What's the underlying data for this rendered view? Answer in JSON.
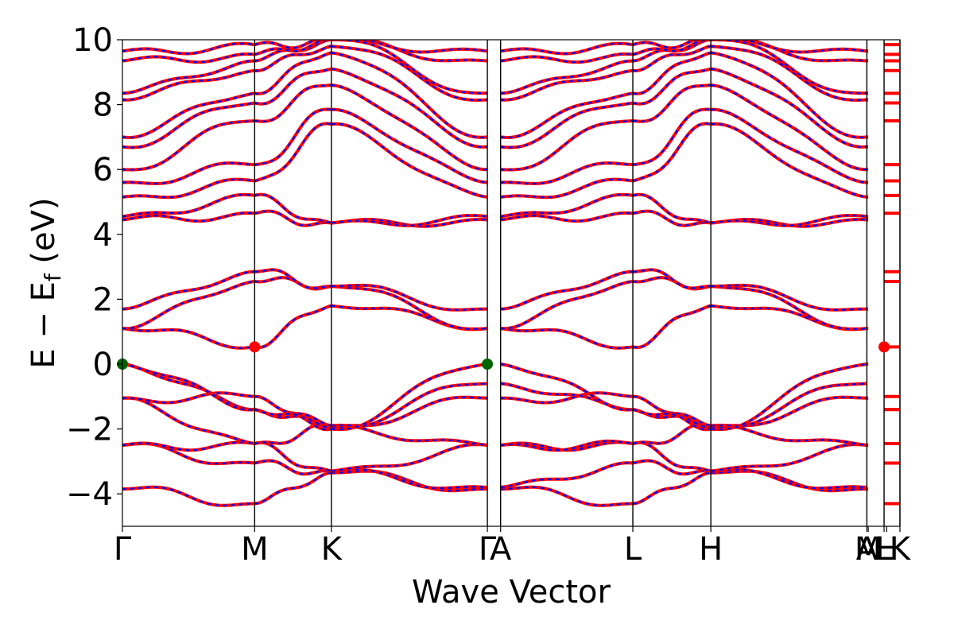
{
  "chart_data": {
    "type": "line",
    "xlabel": "Wave Vector",
    "ylabel": "E − E",
    "ylabel_sub": "f",
    "ylabel_unit": " (eV)",
    "ylim": [
      -5,
      10
    ],
    "y_ticks": [
      -4,
      -2,
      0,
      2,
      4,
      6,
      8,
      10
    ],
    "y_tick_labels": [
      "−4",
      "−2",
      "0",
      "2",
      "4",
      "6",
      "8",
      "10"
    ],
    "kpath": {
      "labels": [
        "Γ",
        "M",
        "K",
        "Γ",
        "A",
        "L",
        "H",
        "A",
        "M",
        "L",
        "H",
        "K"
      ],
      "positions": [
        0,
        1.0,
        1.58,
        2.76,
        2.86,
        3.86,
        4.45,
        5.63,
        5.64,
        5.76,
        5.78,
        5.88
      ],
      "vlines": [
        1.0,
        1.58,
        2.76,
        2.86,
        3.86,
        4.45,
        5.63,
        5.76,
        5.88
      ]
    },
    "xlim": [
      0,
      5.88
    ],
    "series_colors": {
      "band_solid": "#ff0000",
      "band_dashed": "#0000ff"
    },
    "special_points": [
      {
        "x": 0.0,
        "y": 0.0,
        "kind": "vbm",
        "color": "#006400"
      },
      {
        "x": 2.76,
        "y": 0.0,
        "kind": "vbm",
        "color": "#006400"
      },
      {
        "x": 1.0,
        "y": 0.53,
        "kind": "cbm",
        "color": "#ff0000"
      },
      {
        "x": 5.76,
        "y": 0.53,
        "kind": "cbm",
        "color": "#ff0000"
      }
    ],
    "bands": [
      {
        "name": "v1",
        "y": [
          -3.85,
          -4.3,
          -3.35,
          -3.85,
          -3.85,
          -4.3,
          -3.35,
          -3.85
        ]
      },
      {
        "name": "v2",
        "y": [
          -2.5,
          -3.05,
          -3.3,
          -3.8,
          -3.8,
          -3.05,
          -3.3,
          -3.8
        ]
      },
      {
        "name": "v3",
        "y": [
          -2.5,
          -2.45,
          -3.3,
          -2.5,
          -2.5,
          -2.45,
          -3.3,
          -2.5
        ]
      },
      {
        "name": "v4",
        "y": [
          -1.05,
          -2.45,
          -1.9,
          -2.5,
          -2.5,
          -2.45,
          -1.9,
          -2.5
        ]
      },
      {
        "name": "v5",
        "y": [
          -1.05,
          -1.0,
          -1.9,
          -1.05,
          -1.05,
          -1.0,
          -1.9,
          -1.05
        ]
      },
      {
        "name": "v6",
        "y": [
          0.0,
          -1.4,
          -1.95,
          -0.6,
          -0.6,
          -1.4,
          -1.95,
          -0.6
        ]
      },
      {
        "name": "v7",
        "y": [
          0.0,
          -1.4,
          -2.0,
          0.0,
          0.0,
          -1.4,
          -2.0,
          0.0
        ]
      },
      {
        "name": "c1",
        "y": [
          1.1,
          0.53,
          1.8,
          1.1,
          1.1,
          0.53,
          1.8,
          1.1
        ]
      },
      {
        "name": "c2",
        "y": [
          1.1,
          2.55,
          2.4,
          1.1,
          1.1,
          2.55,
          2.4,
          1.1
        ]
      },
      {
        "name": "c3",
        "y": [
          1.7,
          2.85,
          2.4,
          1.7,
          1.7,
          2.85,
          2.4,
          1.7
        ]
      },
      {
        "name": "c4",
        "y": [
          4.45,
          4.65,
          4.35,
          4.45,
          4.45,
          4.65,
          4.35,
          4.45
        ]
      },
      {
        "name": "c5",
        "y": [
          4.55,
          5.2,
          4.35,
          4.55,
          4.55,
          5.2,
          4.35,
          4.55
        ]
      },
      {
        "name": "c6",
        "y": [
          5.15,
          5.65,
          7.4,
          5.15,
          5.15,
          5.65,
          7.4,
          5.15
        ]
      },
      {
        "name": "c7",
        "y": [
          5.6,
          6.15,
          7.85,
          5.6,
          5.6,
          6.15,
          7.85,
          5.6
        ]
      },
      {
        "name": "c8",
        "y": [
          6.0,
          7.5,
          8.6,
          6.0,
          6.0,
          7.5,
          8.6,
          6.0
        ]
      },
      {
        "name": "c9",
        "y": [
          6.7,
          8.05,
          9.1,
          6.7,
          6.7,
          8.05,
          9.1,
          6.7
        ]
      },
      {
        "name": "c10",
        "y": [
          7.0,
          8.35,
          9.6,
          7.0,
          7.0,
          8.35,
          9.6,
          7.0
        ]
      },
      {
        "name": "c11",
        "y": [
          8.15,
          9.05,
          9.8,
          8.15,
          8.15,
          9.05,
          9.8,
          8.15
        ]
      },
      {
        "name": "c12",
        "y": [
          8.35,
          9.35,
          10.0,
          8.35,
          8.35,
          9.35,
          10.0,
          8.35
        ]
      },
      {
        "name": "c13",
        "y": [
          9.35,
          9.55,
          10.0,
          9.35,
          9.35,
          9.55,
          10.0,
          9.35
        ]
      },
      {
        "name": "c14",
        "y": [
          9.65,
          9.85,
          10.0,
          9.65,
          9.65,
          9.85,
          10.0,
          9.65
        ]
      }
    ]
  }
}
